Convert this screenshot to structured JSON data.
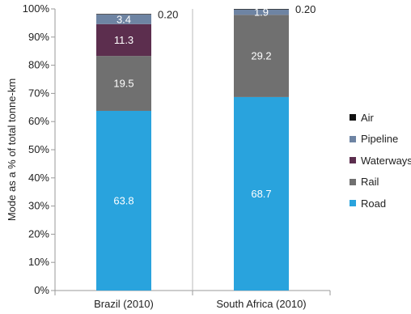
{
  "chart_data": {
    "type": "bar",
    "stacked": true,
    "categories": [
      "Brazil (2010)",
      "South Africa (2010)"
    ],
    "ylabel": "Mode as a % of total tonne-km",
    "ylim": [
      0,
      100
    ],
    "yticks": [
      "0%",
      "10%",
      "20%",
      "30%",
      "40%",
      "50%",
      "60%",
      "70%",
      "80%",
      "90%",
      "100%"
    ],
    "series": [
      {
        "name": "Road",
        "color": "#29a3dd",
        "values": [
          63.8,
          68.7
        ],
        "labels": [
          "63.8",
          "68.7"
        ]
      },
      {
        "name": "Rail",
        "color": "#707070",
        "values": [
          19.5,
          29.2
        ],
        "labels": [
          "19.5",
          "29.2"
        ]
      },
      {
        "name": "Waterways",
        "color": "#5c2e4e",
        "values": [
          11.3,
          0
        ],
        "labels": [
          "11.3",
          ""
        ]
      },
      {
        "name": "Pipeline",
        "color": "#6e84a3",
        "values": [
          3.4,
          1.9
        ],
        "labels": [
          "3.4",
          "1.9"
        ]
      },
      {
        "name": "Air",
        "color": "#111111",
        "values": [
          0.2,
          0.2
        ],
        "labels": [
          "0.20",
          "0.20"
        ]
      }
    ],
    "legend_order": [
      "Air",
      "Pipeline",
      "Waterways",
      "Rail",
      "Road"
    ],
    "legend_position": "right",
    "grid": false
  }
}
